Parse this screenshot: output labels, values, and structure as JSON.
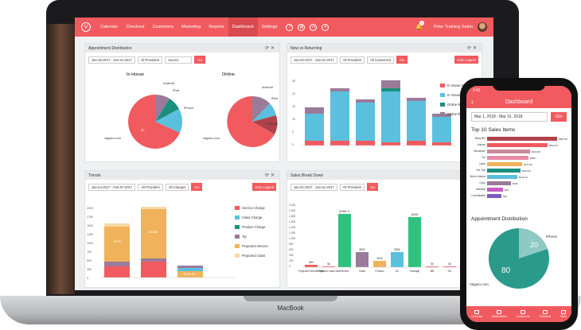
{
  "nav": {
    "logo": "V",
    "items": [
      "Calendar",
      "Checkout",
      "Customers",
      "Marketing",
      "Reports",
      "Dashboard",
      "Settings"
    ],
    "active": "Dashboard",
    "notification_count": "1",
    "user": "Poke Training Salon"
  },
  "device_label": "MacBook",
  "colors": {
    "brand": "#f15a5e",
    "pink": "#f15a5e",
    "blue": "#5bc0de",
    "teal": "#1b8f7f",
    "purple": "#9a7b9a",
    "orange": "#f0b25b",
    "green": "#2ec27e"
  },
  "appointment_distribution": {
    "title": "Appointment Distribution",
    "date_range": "Jan-25-2017 - Jan-31-2017",
    "providers": "All Providers",
    "source": "Source",
    "go": "Go",
    "in_house": {
      "title": "In House",
      "labels": [
        "Android",
        "iPad",
        "iPhone",
        "vagaro.com"
      ],
      "center_value": "30"
    },
    "online": {
      "title": "Online",
      "labels": [
        "Android",
        "iPad",
        "iPhone",
        "vagaro.com"
      ]
    }
  },
  "new_vs_returning": {
    "title": "New vs Returning",
    "date_range": "Jan-02-2017 - Jan-31-2017",
    "providers": "All Providers",
    "customers": "All Customers",
    "go": "Go",
    "hide_legend": "Hide Legend",
    "legend": [
      "In House New",
      "In House Returning",
      "Online New",
      "Online Returning"
    ]
  },
  "trends": {
    "title": "Trends",
    "date_range": "Jan-24-2017 - Feb-07-2017",
    "providers": "All Providers",
    "charges": "All Charges",
    "go": "Go",
    "hide_legend": "Hide Legend",
    "legend": [
      "Service Charge",
      "Class Charge",
      "Product Charge",
      "Tip",
      "Projected Service",
      "Projected Class"
    ],
    "y_ticks": [
      "2000",
      "1750",
      "1500",
      "1250",
      "1000",
      "750",
      "500",
      "250",
      "0"
    ],
    "values": [
      "$755",
      "$1005",
      "$118.50"
    ]
  },
  "sales_break_down": {
    "title": "Sales Break Down",
    "date_range": "Jan-01-2017 - Jan-31-2017",
    "providers": "All Providers",
    "go": "Go",
    "y_ticks": [
      "2,200",
      "2,000",
      "1,800",
      "1,600",
      "1,400",
      "1,200",
      "1,000",
      "800",
      "600",
      "400",
      "200",
      "0"
    ],
    "categories": [
      "Projected Service Sale",
      "Projected Class Sale",
      "Service",
      "Class",
      "Product",
      "GC",
      "Package",
      "MB",
      "GU"
    ],
    "value_labels": [
      "$80",
      "$0",
      "$1968.71",
      "$550",
      "$245",
      "$556",
      "$1849",
      "$0",
      "$0"
    ]
  },
  "mobile": {
    "time": "9:41",
    "title": "Dashboard",
    "date_range": "Mar 1, 2018 - Mar 31, 2018",
    "go": "Go",
    "top10_title": "Top 10 Sales Items",
    "top10_labels": [
      "Blow Bro",
      "Haircut",
      "Blowdown",
      "Cut",
      "Updo",
      "Hot Tool",
      "Men's Haircut",
      "Color",
      "Mohawk",
      "Consultation"
    ],
    "top10_values": [
      "$887.50",
      "$550.00",
      "$419.48",
      "$388",
      "$271.50",
      "$243.50",
      "$211.50",
      "$156",
      "$93",
      "$90"
    ],
    "appt_title": "Appointment Distribution",
    "pie_small": "20",
    "pie_large": "80",
    "pie_label": "iPhone",
    "source_label": "Vagaro.com",
    "tabs": [
      "Calendar",
      "Notifications",
      "Customers",
      "Checkout",
      "More"
    ]
  }
}
